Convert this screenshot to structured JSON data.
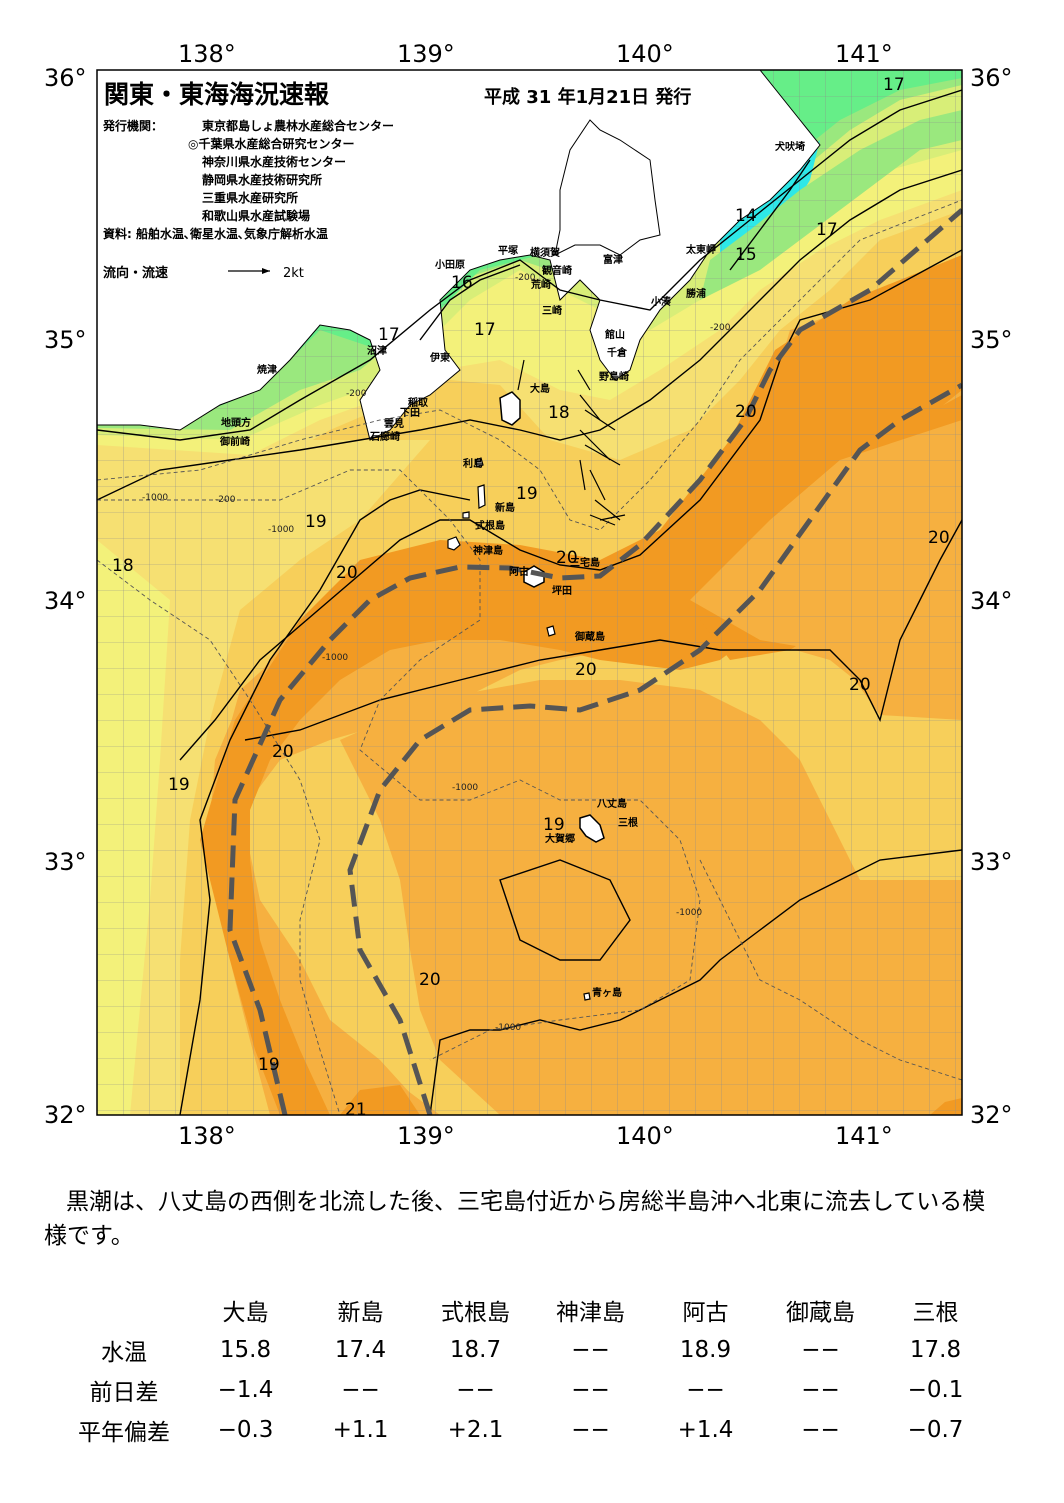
{
  "title": "関東・東海海況速報",
  "issue_date": "平成 31 年1月21日 発行",
  "agencies_label": "発行機関：",
  "agencies": [
    "東京都島しょ農林水産総合センター",
    "◎千葉県水産総合研究センター",
    "神奈川県水産技術センター",
    "静岡県水産技術研究所",
    "三重県水産研究所",
    "和歌山県水産試験場"
  ],
  "source": "資料: 船舶水温､衛星水温､気象庁解析水温",
  "flow_legend_label": "流向・流速",
  "flow_legend_scale": "2kt",
  "lon_labels": [
    "138°",
    "139°",
    "140°",
    "141°"
  ],
  "lat_labels": [
    "36°",
    "35°",
    "34°",
    "33°",
    "32°"
  ],
  "place_names": [
    "犬吠埼",
    "太東岬",
    "勝浦",
    "小湊",
    "富津",
    "横須賀",
    "観音崎",
    "平塚",
    "荒崎",
    "三崎",
    "小田原",
    "館山",
    "千倉",
    "野島崎",
    "大島",
    "沼津",
    "伊東",
    "焼津",
    "稲取",
    "下田",
    "雲見",
    "石廊崎",
    "地頭方",
    "御前崎",
    "利島",
    "新島",
    "式根島",
    "神津島",
    "阿古",
    "三宅島",
    "坪田",
    "御蔵島",
    "八丈島",
    "三根",
    "大賀郷",
    "青ヶ島"
  ],
  "isotherm_labels": [
    "17",
    "14",
    "15",
    "17",
    "16",
    "17",
    "17",
    "18",
    "20",
    "19",
    "19",
    "18",
    "20",
    "20",
    "20",
    "20",
    "20",
    "19",
    "19",
    "20",
    "19",
    "21"
  ],
  "depth_labels": [
    "-200",
    "-1000"
  ],
  "colors": {
    "t13": "#2ee8e8",
    "t14": "#66ee88",
    "t15": "#9ae87e",
    "t16": "#d8ee78",
    "t17": "#f3f17a",
    "t18": "#f6e072",
    "t19": "#f7cf5a",
    "t20": "#f6b040",
    "t21": "#f29a22",
    "land": "#ffffff",
    "kuroshio_axis": "#555555"
  },
  "description": "黒潮は、八丈島の西側を北流した後、三宅島付近から房総半島沖へ北東に流去している模様です。",
  "table": {
    "columns": [
      "大島",
      "新島",
      "式根島",
      "神津島",
      "阿古",
      "御蔵島",
      "三根"
    ],
    "rows": [
      {
        "label": "水温",
        "values": [
          "15.8",
          "17.4",
          "18.7",
          "−−",
          "18.9",
          "−−",
          "17.8"
        ]
      },
      {
        "label": "前日差",
        "values": [
          "−1.4",
          "−−",
          "−−",
          "−−",
          "−−",
          "−−",
          "−0.1"
        ]
      },
      {
        "label": "平年偏差",
        "values": [
          "−0.3",
          "+1.1",
          "+2.1",
          "−−",
          "+1.4",
          "−−",
          "−0.7"
        ]
      }
    ]
  }
}
